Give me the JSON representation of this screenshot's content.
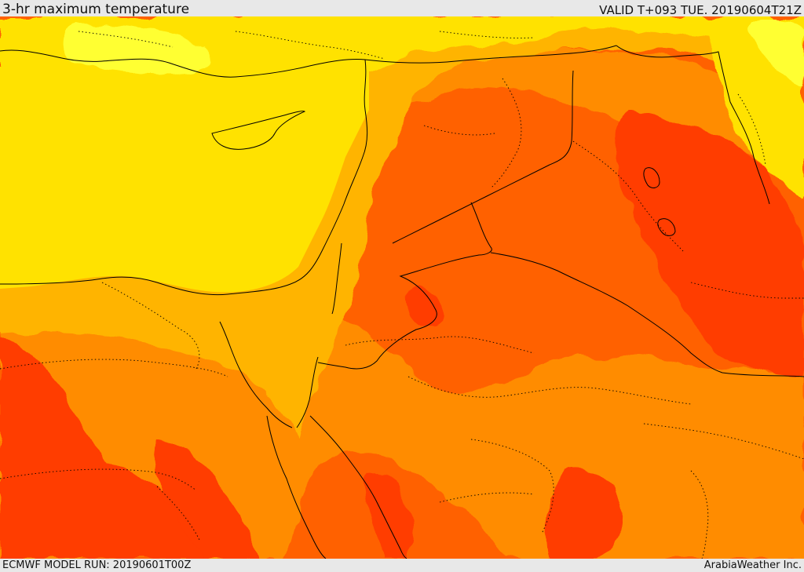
{
  "header": {
    "title": "3-hr maximum temperature",
    "valid": "VALID T+093 TUE. 20190604T21Z"
  },
  "footer": {
    "model_run": "ECMWF MODEL RUN: 20190601T00Z",
    "credit": "ArabiaWeather Inc."
  },
  "colors": {
    "band_yellow_light": "#ffff33",
    "band_yellow": "#ffe200",
    "band_gold": "#ffb400",
    "band_orange": "#ff8c00",
    "band_dark_orange": "#ff6100",
    "band_red_orange": "#ff3c00",
    "boundary_line": "#000000"
  }
}
